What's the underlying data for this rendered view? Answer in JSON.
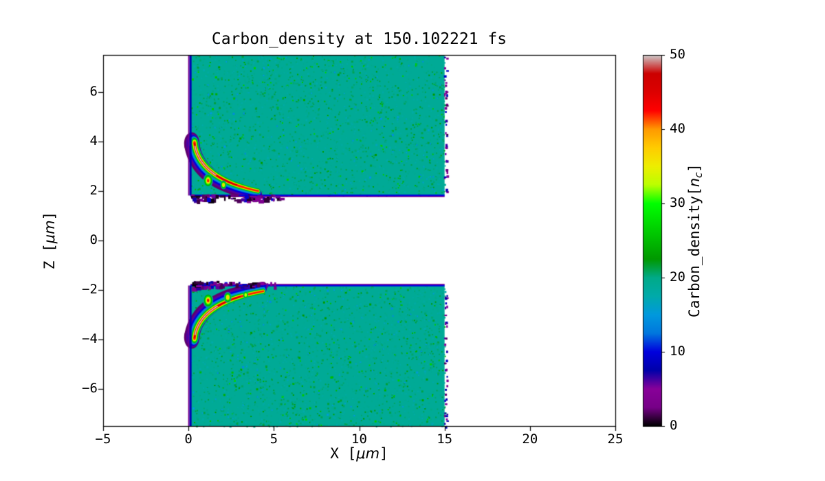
{
  "figure": {
    "title": "Carbon_density at 150.102221 fs",
    "xlabel": {
      "prefix": "X [",
      "math": "μm",
      "suffix": "]"
    },
    "ylabel": {
      "prefix": "Z [",
      "math": "μm",
      "suffix": "]"
    },
    "colorbar_label": {
      "prefix": "Carbon_density[",
      "var": "n",
      "sub": "c",
      "suffix": "]"
    }
  },
  "chart_data": {
    "type": "heatmap",
    "title": "Carbon_density at 150.102221 fs",
    "time_fs": 150.102221,
    "xlabel": "X [μm]",
    "ylabel": "Z [μm]",
    "x_range": [
      -5,
      25
    ],
    "z_range": [
      -7.5,
      7.5
    ],
    "x_ticks": [
      -5,
      0,
      5,
      10,
      15,
      20,
      25
    ],
    "z_ticks": [
      -6,
      -4,
      -2,
      0,
      2,
      4,
      6
    ],
    "grid": false,
    "colorbar": {
      "label": "Carbon_density[n_c]",
      "min": 0,
      "max": 50,
      "ticks": [
        0,
        10,
        20,
        30,
        40,
        50
      ],
      "colormap": "nipy_spectral"
    },
    "colormap_stops": [
      [
        0.0,
        "#000000"
      ],
      [
        0.05,
        "#770088"
      ],
      [
        0.1,
        "#880099"
      ],
      [
        0.15,
        "#0000aa"
      ],
      [
        0.2,
        "#0000dd"
      ],
      [
        0.25,
        "#0077dd"
      ],
      [
        0.3,
        "#0099dd"
      ],
      [
        0.35,
        "#00aaaa"
      ],
      [
        0.4,
        "#00aa88"
      ],
      [
        0.45,
        "#009900"
      ],
      [
        0.5,
        "#00bb00"
      ],
      [
        0.55,
        "#00dd00"
      ],
      [
        0.6,
        "#00ff00"
      ],
      [
        0.65,
        "#bbff00"
      ],
      [
        0.7,
        "#eeee00"
      ],
      [
        0.75,
        "#ffcc00"
      ],
      [
        0.8,
        "#ff9900"
      ],
      [
        0.85,
        "#ff0000"
      ],
      [
        0.9,
        "#dd0000"
      ],
      [
        0.95,
        "#cc0000"
      ],
      [
        1.0,
        "#cccccc"
      ]
    ],
    "slabs": [
      {
        "name": "upper-target-slab",
        "x": [
          0.1,
          15.0
        ],
        "z": [
          1.82,
          7.5
        ],
        "density_nc": 19
      },
      {
        "name": "lower-target-slab",
        "x": [
          0.1,
          15.0
        ],
        "z": [
          -7.5,
          -1.82
        ],
        "density_nc": 19
      }
    ],
    "features": [
      {
        "name": "upper-front-compression",
        "curve": {
          "a": [
            0.35,
            3.95
          ],
          "c": [
            0.6,
            2.5
          ],
          "b": [
            4.1,
            2.0
          ]
        },
        "side": 1,
        "levels": [
          {
            "v": 2,
            "w": 0.45,
            "off": 0.16
          },
          {
            "v": 6,
            "w": 0.38,
            "off": 0.12
          },
          {
            "v": 10,
            "w": 0.32,
            "off": 0.08
          },
          {
            "v": 14,
            "w": 0.27,
            "off": 0.04
          },
          {
            "v": 19,
            "w": 0.23,
            "off": 0
          },
          {
            "v": 24,
            "w": 0.19,
            "off": 0
          },
          {
            "v": 29,
            "w": 0.155,
            "off": 0
          },
          {
            "v": 33,
            "w": 0.12,
            "off": 0
          },
          {
            "v": 37,
            "w": 0.095,
            "off": 0
          },
          {
            "v": 42,
            "w": 0.07,
            "off": 0
          },
          {
            "v": 46,
            "w": 0.05,
            "off": 0,
            "t0": 0.02,
            "t1": 0.8
          },
          {
            "v": 50,
            "w": 0.03,
            "off": 0,
            "t0": 0.05,
            "t1": 0.55
          }
        ],
        "blobs": [
          {
            "x": 1.15,
            "z": 2.42,
            "r": 0.28,
            "vmax": 42
          },
          {
            "x": 2.05,
            "z": 2.25,
            "r": 0.18,
            "vmax": 37
          }
        ]
      },
      {
        "name": "lower-front-compression",
        "curve": {
          "a": [
            0.35,
            -3.95
          ],
          "c": [
            0.6,
            -2.5
          ],
          "b": [
            4.4,
            -2.05
          ]
        },
        "side": -1,
        "levels": [
          {
            "v": 2,
            "w": 0.45,
            "off": 0.16
          },
          {
            "v": 6,
            "w": 0.38,
            "off": 0.12
          },
          {
            "v": 10,
            "w": 0.32,
            "off": 0.08
          },
          {
            "v": 14,
            "w": 0.27,
            "off": 0.04
          },
          {
            "v": 19,
            "w": 0.23,
            "off": 0
          },
          {
            "v": 24,
            "w": 0.19,
            "off": 0
          },
          {
            "v": 29,
            "w": 0.155,
            "off": 0
          },
          {
            "v": 33,
            "w": 0.12,
            "off": 0
          },
          {
            "v": 37,
            "w": 0.095,
            "off": 0
          },
          {
            "v": 42,
            "w": 0.07,
            "off": 0
          },
          {
            "v": 46,
            "w": 0.05,
            "off": 0,
            "t0": 0.02,
            "t1": 0.8
          },
          {
            "v": 50,
            "w": 0.03,
            "off": 0,
            "t0": 0.05,
            "t1": 0.55
          }
        ],
        "blobs": [
          {
            "x": 1.15,
            "z": -2.42,
            "r": 0.3,
            "vmax": 46
          },
          {
            "x": 2.3,
            "z": -2.3,
            "r": 0.22,
            "vmax": 40
          },
          {
            "x": 3.35,
            "z": -2.2,
            "r": 0.15,
            "vmax": 33
          }
        ]
      }
    ]
  }
}
